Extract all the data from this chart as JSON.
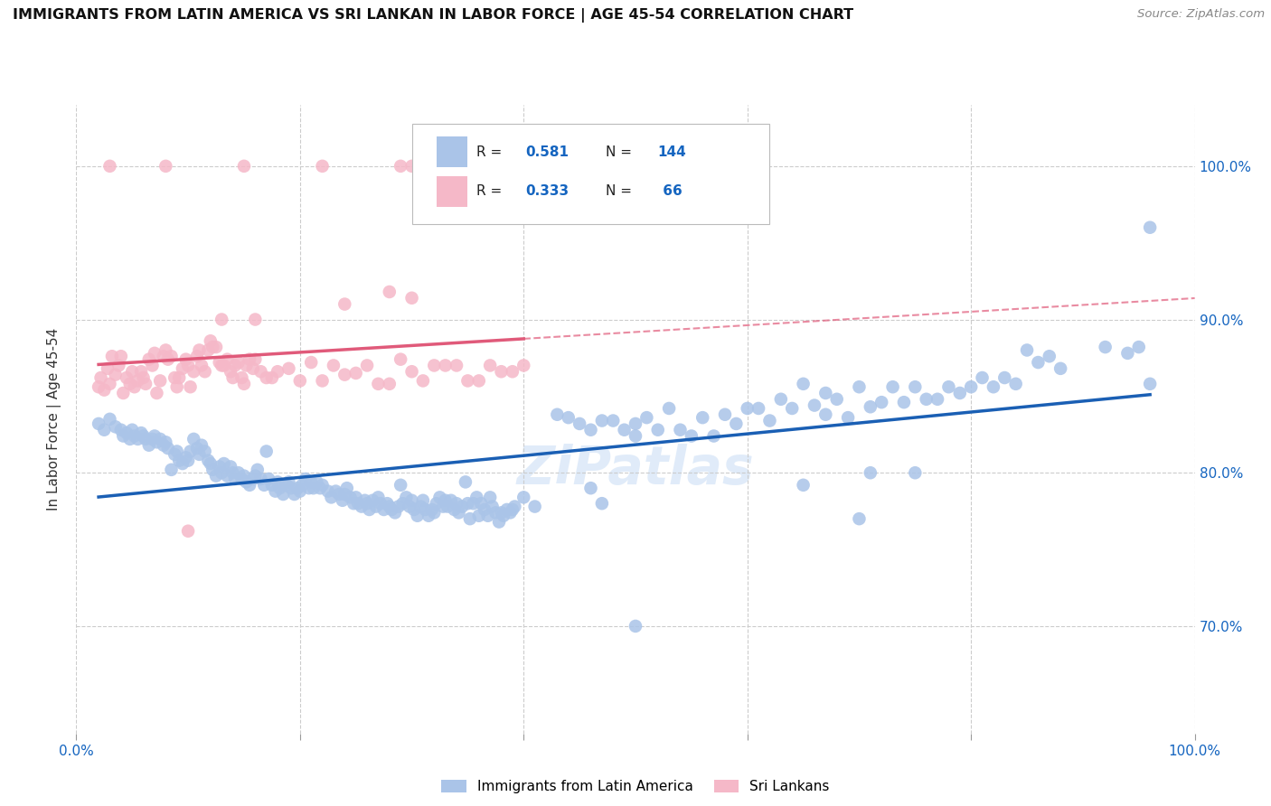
{
  "title": "IMMIGRANTS FROM LATIN AMERICA VS SRI LANKAN IN LABOR FORCE | AGE 45-54 CORRELATION CHART",
  "source": "Source: ZipAtlas.com",
  "ylabel": "In Labor Force | Age 45-54",
  "y_tick_labels": [
    "70.0%",
    "80.0%",
    "90.0%",
    "100.0%"
  ],
  "y_tick_values": [
    0.7,
    0.8,
    0.9,
    1.0
  ],
  "x_range": [
    0.0,
    1.0
  ],
  "y_range": [
    0.63,
    1.04
  ],
  "r_blue": "0.581",
  "n_blue": "144",
  "r_pink": "0.333",
  "n_pink": " 66",
  "blue_color": "#aac4e8",
  "pink_color": "#f5b8c8",
  "line_blue": "#1a5fb4",
  "line_pink": "#e05a7a",
  "legend_label_blue": "Immigrants from Latin America",
  "legend_label_pink": "Sri Lankans",
  "watermark": "ZiPatlas",
  "blue_scatter": [
    [
      0.02,
      0.832
    ],
    [
      0.025,
      0.828
    ],
    [
      0.03,
      0.835
    ],
    [
      0.035,
      0.83
    ],
    [
      0.04,
      0.828
    ],
    [
      0.042,
      0.824
    ],
    [
      0.045,
      0.826
    ],
    [
      0.048,
      0.822
    ],
    [
      0.05,
      0.828
    ],
    [
      0.052,
      0.824
    ],
    [
      0.055,
      0.822
    ],
    [
      0.058,
      0.826
    ],
    [
      0.06,
      0.824
    ],
    [
      0.062,
      0.822
    ],
    [
      0.065,
      0.818
    ],
    [
      0.068,
      0.822
    ],
    [
      0.07,
      0.824
    ],
    [
      0.072,
      0.82
    ],
    [
      0.075,
      0.822
    ],
    [
      0.078,
      0.818
    ],
    [
      0.08,
      0.82
    ],
    [
      0.082,
      0.816
    ],
    [
      0.085,
      0.802
    ],
    [
      0.088,
      0.812
    ],
    [
      0.09,
      0.814
    ],
    [
      0.092,
      0.808
    ],
    [
      0.095,
      0.806
    ],
    [
      0.098,
      0.81
    ],
    [
      0.1,
      0.808
    ],
    [
      0.102,
      0.814
    ],
    [
      0.105,
      0.822
    ],
    [
      0.108,
      0.816
    ],
    [
      0.11,
      0.812
    ],
    [
      0.112,
      0.818
    ],
    [
      0.115,
      0.814
    ],
    [
      0.118,
      0.808
    ],
    [
      0.12,
      0.806
    ],
    [
      0.122,
      0.802
    ],
    [
      0.125,
      0.798
    ],
    [
      0.128,
      0.804
    ],
    [
      0.13,
      0.8
    ],
    [
      0.132,
      0.806
    ],
    [
      0.135,
      0.798
    ],
    [
      0.138,
      0.804
    ],
    [
      0.14,
      0.8
    ],
    [
      0.142,
      0.796
    ],
    [
      0.145,
      0.8
    ],
    [
      0.148,
      0.796
    ],
    [
      0.15,
      0.798
    ],
    [
      0.152,
      0.794
    ],
    [
      0.155,
      0.792
    ],
    [
      0.158,
      0.796
    ],
    [
      0.16,
      0.798
    ],
    [
      0.162,
      0.802
    ],
    [
      0.165,
      0.796
    ],
    [
      0.168,
      0.792
    ],
    [
      0.17,
      0.814
    ],
    [
      0.172,
      0.796
    ],
    [
      0.175,
      0.792
    ],
    [
      0.178,
      0.788
    ],
    [
      0.18,
      0.794
    ],
    [
      0.182,
      0.79
    ],
    [
      0.185,
      0.786
    ],
    [
      0.188,
      0.792
    ],
    [
      0.19,
      0.794
    ],
    [
      0.192,
      0.79
    ],
    [
      0.195,
      0.786
    ],
    [
      0.198,
      0.79
    ],
    [
      0.2,
      0.788
    ],
    [
      0.202,
      0.792
    ],
    [
      0.205,
      0.796
    ],
    [
      0.208,
      0.79
    ],
    [
      0.21,
      0.794
    ],
    [
      0.212,
      0.79
    ],
    [
      0.215,
      0.794
    ],
    [
      0.218,
      0.79
    ],
    [
      0.22,
      0.792
    ],
    [
      0.225,
      0.788
    ],
    [
      0.228,
      0.784
    ],
    [
      0.232,
      0.788
    ],
    [
      0.235,
      0.786
    ],
    [
      0.238,
      0.782
    ],
    [
      0.24,
      0.786
    ],
    [
      0.242,
      0.79
    ],
    [
      0.245,
      0.784
    ],
    [
      0.248,
      0.78
    ],
    [
      0.25,
      0.784
    ],
    [
      0.252,
      0.78
    ],
    [
      0.255,
      0.778
    ],
    [
      0.258,
      0.782
    ],
    [
      0.26,
      0.78
    ],
    [
      0.262,
      0.776
    ],
    [
      0.265,
      0.782
    ],
    [
      0.268,
      0.778
    ],
    [
      0.27,
      0.784
    ],
    [
      0.272,
      0.78
    ],
    [
      0.275,
      0.776
    ],
    [
      0.278,
      0.78
    ],
    [
      0.28,
      0.778
    ],
    [
      0.282,
      0.776
    ],
    [
      0.285,
      0.774
    ],
    [
      0.288,
      0.778
    ],
    [
      0.29,
      0.792
    ],
    [
      0.292,
      0.78
    ],
    [
      0.295,
      0.784
    ],
    [
      0.298,
      0.778
    ],
    [
      0.3,
      0.782
    ],
    [
      0.302,
      0.776
    ],
    [
      0.305,
      0.772
    ],
    [
      0.308,
      0.778
    ],
    [
      0.31,
      0.782
    ],
    [
      0.312,
      0.776
    ],
    [
      0.315,
      0.772
    ],
    [
      0.318,
      0.776
    ],
    [
      0.32,
      0.774
    ],
    [
      0.322,
      0.78
    ],
    [
      0.325,
      0.784
    ],
    [
      0.328,
      0.778
    ],
    [
      0.33,
      0.782
    ],
    [
      0.332,
      0.778
    ],
    [
      0.335,
      0.782
    ],
    [
      0.338,
      0.776
    ],
    [
      0.34,
      0.78
    ],
    [
      0.342,
      0.774
    ],
    [
      0.345,
      0.778
    ],
    [
      0.348,
      0.794
    ],
    [
      0.35,
      0.78
    ],
    [
      0.352,
      0.77
    ],
    [
      0.355,
      0.78
    ],
    [
      0.358,
      0.784
    ],
    [
      0.36,
      0.772
    ],
    [
      0.362,
      0.78
    ],
    [
      0.365,
      0.776
    ],
    [
      0.368,
      0.772
    ],
    [
      0.37,
      0.784
    ],
    [
      0.372,
      0.778
    ],
    [
      0.375,
      0.774
    ],
    [
      0.378,
      0.768
    ],
    [
      0.38,
      0.774
    ],
    [
      0.382,
      0.772
    ],
    [
      0.385,
      0.776
    ],
    [
      0.388,
      0.774
    ],
    [
      0.39,
      0.776
    ],
    [
      0.392,
      0.778
    ],
    [
      0.4,
      0.784
    ],
    [
      0.41,
      0.778
    ],
    [
      0.43,
      0.838
    ],
    [
      0.44,
      0.836
    ],
    [
      0.45,
      0.832
    ],
    [
      0.46,
      0.828
    ],
    [
      0.46,
      0.79
    ],
    [
      0.47,
      0.834
    ],
    [
      0.47,
      0.78
    ],
    [
      0.48,
      0.834
    ],
    [
      0.49,
      0.828
    ],
    [
      0.5,
      0.832
    ],
    [
      0.5,
      0.824
    ],
    [
      0.51,
      0.836
    ],
    [
      0.52,
      0.828
    ],
    [
      0.53,
      0.842
    ],
    [
      0.54,
      0.828
    ],
    [
      0.55,
      0.824
    ],
    [
      0.56,
      0.836
    ],
    [
      0.57,
      0.824
    ],
    [
      0.58,
      0.838
    ],
    [
      0.59,
      0.832
    ],
    [
      0.6,
      0.842
    ],
    [
      0.61,
      0.842
    ],
    [
      0.62,
      0.834
    ],
    [
      0.63,
      0.848
    ],
    [
      0.64,
      0.842
    ],
    [
      0.65,
      0.858
    ],
    [
      0.66,
      0.844
    ],
    [
      0.67,
      0.852
    ],
    [
      0.67,
      0.838
    ],
    [
      0.68,
      0.848
    ],
    [
      0.69,
      0.836
    ],
    [
      0.7,
      0.856
    ],
    [
      0.71,
      0.843
    ],
    [
      0.71,
      0.8
    ],
    [
      0.72,
      0.846
    ],
    [
      0.73,
      0.856
    ],
    [
      0.74,
      0.846
    ],
    [
      0.75,
      0.856
    ],
    [
      0.75,
      0.8
    ],
    [
      0.76,
      0.848
    ],
    [
      0.77,
      0.848
    ],
    [
      0.78,
      0.856
    ],
    [
      0.79,
      0.852
    ],
    [
      0.8,
      0.856
    ],
    [
      0.81,
      0.862
    ],
    [
      0.82,
      0.856
    ],
    [
      0.83,
      0.862
    ],
    [
      0.84,
      0.858
    ],
    [
      0.85,
      0.88
    ],
    [
      0.86,
      0.872
    ],
    [
      0.87,
      0.876
    ],
    [
      0.88,
      0.868
    ],
    [
      0.92,
      0.882
    ],
    [
      0.94,
      0.878
    ],
    [
      0.95,
      0.882
    ],
    [
      0.96,
      0.858
    ],
    [
      0.65,
      0.792
    ],
    [
      0.7,
      0.77
    ],
    [
      0.5,
      0.7
    ],
    [
      0.96,
      0.96
    ]
  ],
  "pink_scatter": [
    [
      0.02,
      0.856
    ],
    [
      0.022,
      0.862
    ],
    [
      0.025,
      0.854
    ],
    [
      0.028,
      0.868
    ],
    [
      0.03,
      0.858
    ],
    [
      0.032,
      0.876
    ],
    [
      0.035,
      0.864
    ],
    [
      0.038,
      0.87
    ],
    [
      0.04,
      0.876
    ],
    [
      0.042,
      0.852
    ],
    [
      0.045,
      0.862
    ],
    [
      0.048,
      0.858
    ],
    [
      0.05,
      0.866
    ],
    [
      0.052,
      0.856
    ],
    [
      0.055,
      0.86
    ],
    [
      0.058,
      0.866
    ],
    [
      0.06,
      0.862
    ],
    [
      0.062,
      0.858
    ],
    [
      0.065,
      0.874
    ],
    [
      0.068,
      0.87
    ],
    [
      0.07,
      0.878
    ],
    [
      0.072,
      0.852
    ],
    [
      0.075,
      0.86
    ],
    [
      0.078,
      0.876
    ],
    [
      0.08,
      0.88
    ],
    [
      0.082,
      0.874
    ],
    [
      0.085,
      0.876
    ],
    [
      0.088,
      0.862
    ],
    [
      0.09,
      0.856
    ],
    [
      0.092,
      0.862
    ],
    [
      0.095,
      0.868
    ],
    [
      0.098,
      0.874
    ],
    [
      0.1,
      0.87
    ],
    [
      0.102,
      0.856
    ],
    [
      0.105,
      0.866
    ],
    [
      0.108,
      0.876
    ],
    [
      0.11,
      0.88
    ],
    [
      0.112,
      0.87
    ],
    [
      0.115,
      0.866
    ],
    [
      0.118,
      0.88
    ],
    [
      0.12,
      0.886
    ],
    [
      0.122,
      0.882
    ],
    [
      0.125,
      0.882
    ],
    [
      0.128,
      0.872
    ],
    [
      0.13,
      0.87
    ],
    [
      0.132,
      0.87
    ],
    [
      0.135,
      0.874
    ],
    [
      0.138,
      0.866
    ],
    [
      0.14,
      0.862
    ],
    [
      0.142,
      0.87
    ],
    [
      0.145,
      0.872
    ],
    [
      0.148,
      0.862
    ],
    [
      0.15,
      0.858
    ],
    [
      0.152,
      0.87
    ],
    [
      0.155,
      0.874
    ],
    [
      0.158,
      0.868
    ],
    [
      0.16,
      0.874
    ],
    [
      0.165,
      0.866
    ],
    [
      0.17,
      0.862
    ],
    [
      0.175,
      0.862
    ],
    [
      0.18,
      0.866
    ],
    [
      0.19,
      0.868
    ],
    [
      0.2,
      0.86
    ],
    [
      0.21,
      0.872
    ],
    [
      0.22,
      0.86
    ],
    [
      0.23,
      0.87
    ],
    [
      0.24,
      0.864
    ],
    [
      0.25,
      0.865
    ],
    [
      0.26,
      0.87
    ],
    [
      0.27,
      0.858
    ],
    [
      0.28,
      0.858
    ],
    [
      0.29,
      0.874
    ],
    [
      0.3,
      0.866
    ],
    [
      0.31,
      0.86
    ],
    [
      0.32,
      0.87
    ],
    [
      0.33,
      0.87
    ],
    [
      0.34,
      0.87
    ],
    [
      0.35,
      0.86
    ],
    [
      0.36,
      0.86
    ],
    [
      0.37,
      0.87
    ],
    [
      0.38,
      0.866
    ],
    [
      0.39,
      0.866
    ],
    [
      0.4,
      0.87
    ],
    [
      0.1,
      0.762
    ],
    [
      0.03,
      1.0
    ],
    [
      0.08,
      1.0
    ],
    [
      0.15,
      1.0
    ],
    [
      0.22,
      1.0
    ],
    [
      0.29,
      1.0
    ],
    [
      0.3,
      1.0
    ],
    [
      0.28,
      0.918
    ],
    [
      0.3,
      0.914
    ],
    [
      0.24,
      0.91
    ],
    [
      0.13,
      0.9
    ],
    [
      0.16,
      0.9
    ]
  ]
}
